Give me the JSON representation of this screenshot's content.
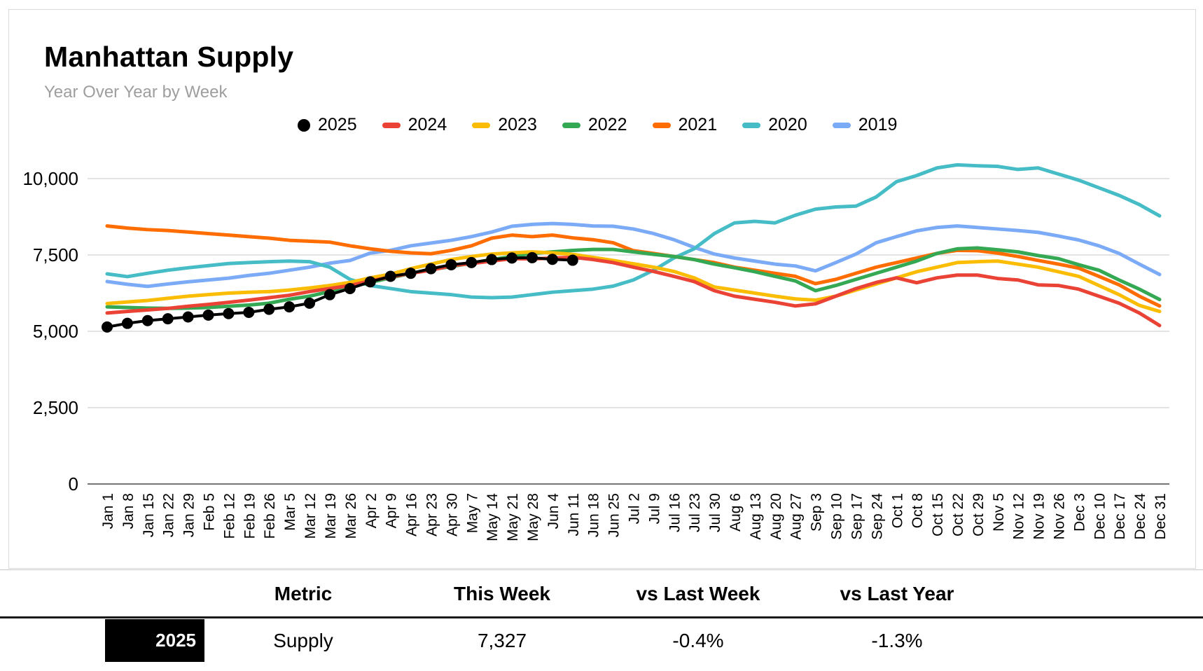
{
  "header": {
    "title": "Manhattan Supply",
    "subtitle": "Year Over Year by Week"
  },
  "legend": [
    {
      "label": "2025",
      "color": "#000000",
      "marker": "circle"
    },
    {
      "label": "2024",
      "color": "#EA4335",
      "marker": "dash"
    },
    {
      "label": "2023",
      "color": "#FBBC04",
      "marker": "dash"
    },
    {
      "label": "2022",
      "color": "#34A853",
      "marker": "dash"
    },
    {
      "label": "2021",
      "color": "#FF6D01",
      "marker": "dash"
    },
    {
      "label": "2020",
      "color": "#46BDC6",
      "marker": "dash"
    },
    {
      "label": "2019",
      "color": "#7BAAF7",
      "marker": "dash"
    }
  ],
  "chart_data": {
    "type": "line",
    "title": "Manhattan Supply",
    "subtitle": "Year Over Year by Week",
    "ylim": [
      0,
      10000
    ],
    "yticks": [
      0,
      2500,
      5000,
      7500,
      10000
    ],
    "ytick_labels": [
      "0",
      "2,500",
      "5,000",
      "7,500",
      "10,000"
    ],
    "grid": true,
    "legend_position": "top",
    "x": [
      "Jan 1",
      "Jan 8",
      "Jan 15",
      "Jan 22",
      "Jan 29",
      "Feb 5",
      "Feb 12",
      "Feb 19",
      "Feb 26",
      "Mar 5",
      "Mar 12",
      "Mar 19",
      "Mar 26",
      "Apr 2",
      "Apr 9",
      "Apr 16",
      "Apr 23",
      "Apr 30",
      "May 7",
      "May 14",
      "May 21",
      "May 28",
      "Jun 4",
      "Jun 11",
      "Jun 18",
      "Jun 25",
      "Jul 2",
      "Jul 9",
      "Jul 16",
      "Jul 23",
      "Jul 30",
      "Aug 6",
      "Aug 13",
      "Aug 20",
      "Aug 27",
      "Sep 3",
      "Sep 10",
      "Sep 17",
      "Sep 24",
      "Oct 1",
      "Oct 8",
      "Oct 15",
      "Oct 22",
      "Oct 29",
      "Nov 5",
      "Nov 12",
      "Nov 19",
      "Nov 26",
      "Dec 3",
      "Dec 10",
      "Dec 17",
      "Dec 24",
      "Dec 31"
    ],
    "series": [
      {
        "name": "2025",
        "color": "#000000",
        "style": "line_markers",
        "values": [
          5140,
          5260,
          5350,
          5410,
          5470,
          5530,
          5580,
          5620,
          5720,
          5800,
          5920,
          6200,
          6400,
          6620,
          6800,
          6900,
          7050,
          7180,
          7250,
          7350,
          7400,
          7410,
          7356,
          7327
        ]
      },
      {
        "name": "2024",
        "color": "#EA4335",
        "style": "line",
        "values": [
          5600,
          5650,
          5700,
          5750,
          5820,
          5880,
          5950,
          6020,
          6100,
          6180,
          6300,
          6400,
          6500,
          6650,
          6780,
          6900,
          7000,
          7150,
          7220,
          7300,
          7380,
          7370,
          7400,
          7424,
          7350,
          7250,
          7100,
          6960,
          6800,
          6630,
          6330,
          6150,
          6050,
          5950,
          5830,
          5900,
          6150,
          6400,
          6600,
          6750,
          6590,
          6750,
          6840,
          6840,
          6730,
          6680,
          6520,
          6500,
          6380,
          6150,
          5920,
          5600,
          5190
        ]
      },
      {
        "name": "2023",
        "color": "#FBBC04",
        "style": "line",
        "values": [
          5910,
          5960,
          6010,
          6080,
          6150,
          6200,
          6250,
          6280,
          6300,
          6350,
          6420,
          6500,
          6600,
          6750,
          6870,
          7050,
          7200,
          7350,
          7450,
          7530,
          7570,
          7600,
          7570,
          7520,
          7420,
          7320,
          7210,
          7100,
          6960,
          6750,
          6450,
          6350,
          6250,
          6150,
          6060,
          6020,
          6150,
          6350,
          6550,
          6750,
          6950,
          7100,
          7250,
          7280,
          7300,
          7200,
          7100,
          6950,
          6800,
          6500,
          6200,
          5850,
          5650
        ]
      },
      {
        "name": "2022",
        "color": "#34A853",
        "style": "line",
        "values": [
          5800,
          5780,
          5760,
          5750,
          5760,
          5780,
          5820,
          5860,
          5920,
          6050,
          6150,
          6300,
          6450,
          6600,
          6750,
          6900,
          7020,
          7120,
          7230,
          7350,
          7450,
          7550,
          7600,
          7650,
          7680,
          7680,
          7600,
          7520,
          7450,
          7350,
          7200,
          7080,
          6950,
          6800,
          6650,
          6330,
          6500,
          6700,
          6900,
          7100,
          7300,
          7550,
          7700,
          7730,
          7670,
          7600,
          7480,
          7380,
          7180,
          7000,
          6680,
          6380,
          6040
        ]
      },
      {
        "name": "2021",
        "color": "#FF6D01",
        "style": "line",
        "values": [
          8450,
          8380,
          8330,
          8300,
          8250,
          8200,
          8150,
          8100,
          8050,
          7980,
          7950,
          7920,
          7800,
          7700,
          7620,
          7570,
          7540,
          7650,
          7800,
          8050,
          8150,
          8100,
          8150,
          8060,
          8000,
          7900,
          7640,
          7550,
          7450,
          7350,
          7250,
          7100,
          7000,
          6900,
          6800,
          6560,
          6700,
          6900,
          7100,
          7250,
          7400,
          7550,
          7650,
          7640,
          7560,
          7450,
          7320,
          7200,
          7070,
          6800,
          6520,
          6150,
          5830
        ]
      },
      {
        "name": "2020",
        "color": "#46BDC6",
        "style": "line",
        "values": [
          6880,
          6790,
          6900,
          7000,
          7080,
          7150,
          7220,
          7250,
          7280,
          7300,
          7280,
          7100,
          6700,
          6500,
          6400,
          6300,
          6250,
          6200,
          6120,
          6100,
          6120,
          6200,
          6280,
          6330,
          6380,
          6480,
          6680,
          7000,
          7400,
          7700,
          8200,
          8550,
          8600,
          8550,
          8800,
          9000,
          9070,
          9100,
          9400,
          9900,
          10100,
          10350,
          10450,
          10420,
          10400,
          10300,
          10350,
          10150,
          9950,
          9700,
          9450,
          9150,
          8780
        ]
      },
      {
        "name": "2019",
        "color": "#7BAAF7",
        "style": "line",
        "values": [
          6630,
          6540,
          6470,
          6550,
          6620,
          6680,
          6740,
          6830,
          6900,
          7000,
          7100,
          7230,
          7320,
          7560,
          7650,
          7800,
          7890,
          7980,
          8100,
          8250,
          8440,
          8500,
          8530,
          8500,
          8450,
          8440,
          8350,
          8200,
          8000,
          7750,
          7530,
          7400,
          7300,
          7200,
          7140,
          6980,
          7250,
          7530,
          7900,
          8100,
          8290,
          8400,
          8450,
          8400,
          8350,
          8300,
          8240,
          8120,
          7990,
          7800,
          7550,
          7200,
          6860
        ]
      }
    ]
  },
  "table": {
    "columns": {
      "metric": "Metric",
      "this_week": "This Week",
      "vs_last_week": "vs Last Week",
      "vs_last_year": "vs Last Year"
    },
    "row": {
      "year": "2025",
      "metric": "Supply",
      "this_week": "7,327",
      "vs_last_week": "-0.4%",
      "vs_last_year": "-1.3%"
    }
  },
  "colors": {
    "gridline": "#e3e3e3",
    "axis_line": "#757575",
    "card_border": "#d9d9d9",
    "subtitle": "#9e9e9e"
  }
}
